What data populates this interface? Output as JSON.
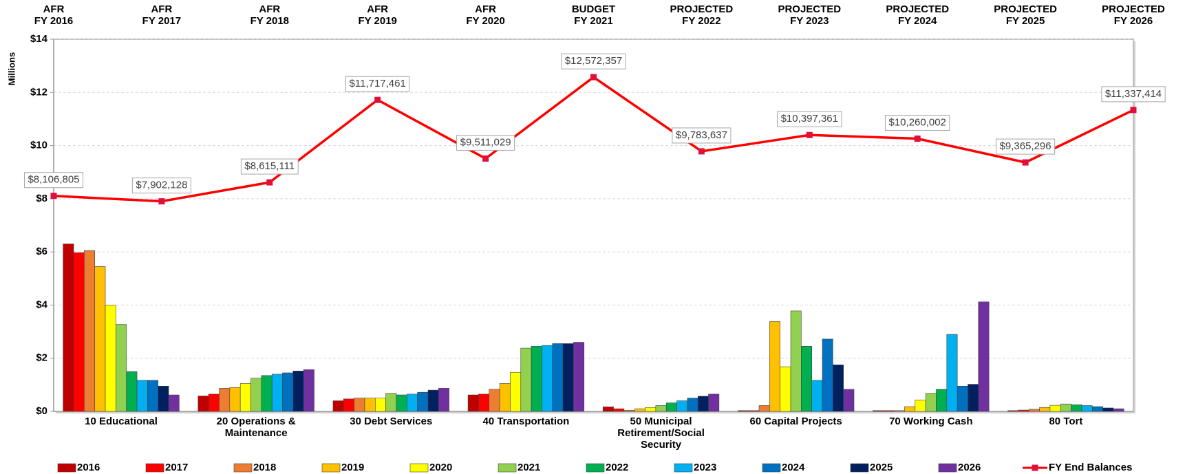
{
  "chart_data": {
    "type": "bar",
    "y_label": "Millions",
    "categories": [
      "10 Educational",
      "20 Operations & Maintenance",
      "30 Debt Services",
      "40 Transportation",
      "50 Municipal Retirement/Social Security",
      "60 Capital Projects",
      "70 Working Cash",
      "80 Tort"
    ],
    "series": [
      {
        "name": "2016",
        "color": "#c00000",
        "values": [
          6.3,
          0.58,
          0.4,
          0.62,
          0.17,
          0.03,
          0.03,
          0.03
        ]
      },
      {
        "name": "2017",
        "color": "#ff0000",
        "values": [
          5.97,
          0.65,
          0.47,
          0.65,
          0.1,
          0.03,
          0.03,
          0.05
        ]
      },
      {
        "name": "2018",
        "color": "#ed7d31",
        "values": [
          6.05,
          0.87,
          0.5,
          0.83,
          0.04,
          0.22,
          0.03,
          0.08
        ]
      },
      {
        "name": "2019",
        "color": "#ffc000",
        "values": [
          5.45,
          0.9,
          0.5,
          1.05,
          0.1,
          3.38,
          0.18,
          0.15
        ]
      },
      {
        "name": "2020",
        "color": "#ffff00",
        "values": [
          4.0,
          1.05,
          0.5,
          1.47,
          0.15,
          1.68,
          0.43,
          0.23
        ]
      },
      {
        "name": "2021",
        "color": "#92d050",
        "values": [
          3.27,
          1.25,
          0.68,
          2.38,
          0.22,
          3.78,
          0.68,
          0.28
        ]
      },
      {
        "name": "2022",
        "color": "#00b050",
        "values": [
          1.5,
          1.35,
          0.62,
          2.45,
          0.32,
          2.45,
          0.83,
          0.25
        ]
      },
      {
        "name": "2023",
        "color": "#00b0f0",
        "values": [
          1.17,
          1.4,
          0.65,
          2.48,
          0.4,
          1.17,
          2.9,
          0.22
        ]
      },
      {
        "name": "2024",
        "color": "#0070c0",
        "values": [
          1.17,
          1.45,
          0.72,
          2.55,
          0.5,
          2.72,
          0.95,
          0.18
        ]
      },
      {
        "name": "2025",
        "color": "#002060",
        "values": [
          0.95,
          1.52,
          0.8,
          2.55,
          0.57,
          1.75,
          1.02,
          0.13
        ]
      },
      {
        "name": "2026",
        "color": "#7030a0",
        "values": [
          0.62,
          1.57,
          0.87,
          2.6,
          0.65,
          0.83,
          4.12,
          0.1
        ]
      }
    ],
    "overlay": {
      "type": "line",
      "name": "FY End Balances",
      "color": "#ff0000",
      "categories": [
        "AFR\nFY 2016",
        "AFR\nFY 2017",
        "AFR\nFY 2018",
        "AFR\nFY 2019",
        "AFR\nFY 2020",
        "BUDGET\nFY 2021",
        "PROJECTED\nFY 2022",
        "PROJECTED\nFY 2023",
        "PROJECTED\nFY 2024",
        "PROJECTED\nFY 2025",
        "PROJECTED\nFY 2026"
      ],
      "values": [
        8.106805,
        7.902128,
        8.615111,
        11.717461,
        9.511029,
        12.572357,
        9.783637,
        10.397361,
        10.260002,
        9.365296,
        11.337414
      ],
      "value_labels": [
        "$8,106,805",
        "$7,902,128",
        "$8,615,111",
        "$11,717,461",
        "$9,511,029",
        "$12,572,357",
        "$9,783,637",
        "$10,397,361",
        "$10,260,002",
        "$9,365,296",
        "$11,337,414"
      ]
    },
    "ylim": [
      0,
      14
    ],
    "yticks": [
      {
        "value": 0,
        "label": "$0"
      },
      {
        "value": 2,
        "label": "$2"
      },
      {
        "value": 4,
        "label": "$4"
      },
      {
        "value": 6,
        "label": "$6"
      },
      {
        "value": 8,
        "label": "$8"
      },
      {
        "value": 10,
        "label": "$10"
      },
      {
        "value": 12,
        "label": "$12"
      },
      {
        "value": 14,
        "label": "$14"
      }
    ],
    "grid": true
  }
}
